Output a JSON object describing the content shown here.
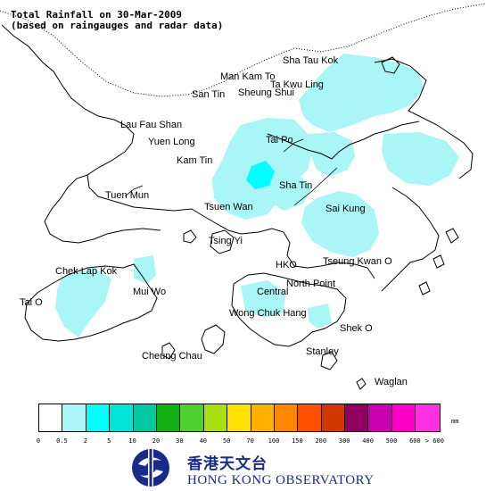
{
  "title": {
    "line1": "Total Rainfall on 30-Mar-2009",
    "line2": "(based on raingauges and radar data)"
  },
  "places": [
    {
      "key": "sha-tau-kok",
      "label": "Sha Tau Kok"
    },
    {
      "key": "man-kam-to",
      "label": "Man Kam To"
    },
    {
      "key": "ta-kwu-ling",
      "label": "Ta Kwu Ling"
    },
    {
      "key": "san-tin",
      "label": "San Tin"
    },
    {
      "key": "sheung-shui",
      "label": "Sheung Shui"
    },
    {
      "key": "lau-fau-shan",
      "label": "Lau Fau Shan"
    },
    {
      "key": "yuen-long",
      "label": "Yuen Long"
    },
    {
      "key": "tai-po",
      "label": "Tai Po"
    },
    {
      "key": "kam-tin",
      "label": "Kam Tin"
    },
    {
      "key": "tuen-mun",
      "label": "Tuen Mun"
    },
    {
      "key": "sha-tin",
      "label": "Sha Tin"
    },
    {
      "key": "tsuen-wan",
      "label": "Tsuen Wan"
    },
    {
      "key": "sai-kung",
      "label": "Sai Kung"
    },
    {
      "key": "tsing-yi",
      "label": "Tsing Yi"
    },
    {
      "key": "chek-lap-kok",
      "label": "Chek Lap Kok"
    },
    {
      "key": "hko",
      "label": "HKO"
    },
    {
      "key": "tseung-kwan-o",
      "label": "Tseung Kwan O"
    },
    {
      "key": "mui-wo",
      "label": "Mui Wo"
    },
    {
      "key": "north-point",
      "label": "North Point"
    },
    {
      "key": "central",
      "label": "Central"
    },
    {
      "key": "tai-o",
      "label": "Tai O"
    },
    {
      "key": "wong-chuk-hang",
      "label": "Wong Chuk Hang"
    },
    {
      "key": "shek-o",
      "label": "Shek O"
    },
    {
      "key": "stanley",
      "label": "Stanley"
    },
    {
      "key": "cheung-chau",
      "label": "Cheung Chau"
    },
    {
      "key": "waglan",
      "label": "Waglan"
    }
  ],
  "legend": {
    "unit": "mm",
    "colors": [
      "#ffffff",
      "#aaf5f5",
      "#00ffff",
      "#00e5d8",
      "#00c8a0",
      "#10b010",
      "#50d030",
      "#a8e010",
      "#ffe000",
      "#ffb000",
      "#ff8800",
      "#ff5000",
      "#d03800",
      "#900060",
      "#c800b0",
      "#ff00c8",
      "#ff30e0",
      "#ff70f0",
      "#ffa8f5",
      "#ffd8ff"
    ],
    "ticks": [
      "0",
      "0.5",
      "2",
      "5",
      "10",
      "20",
      "30",
      "40",
      "50",
      "70",
      "100",
      "150",
      "200",
      "300",
      "400",
      "500",
      "600",
      "> 600"
    ]
  },
  "rain_color": "#aaf5f5",
  "rain_color_heavy": "#00ffff",
  "logo": {
    "icon": "hko-logo-icon",
    "chinese": "香港天文台",
    "english": "HONG KONG OBSERVATORY",
    "color": "#1a2a88"
  }
}
